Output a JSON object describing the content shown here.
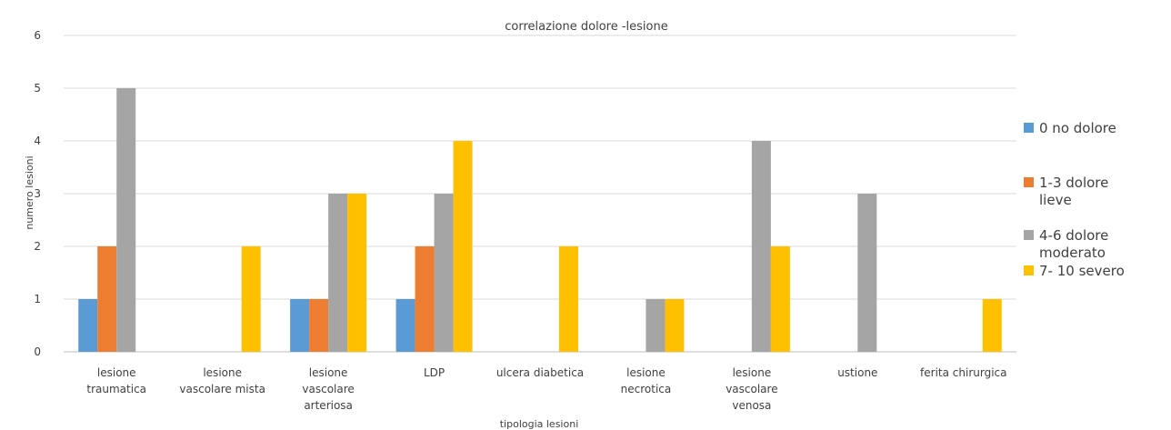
{
  "chart_data": {
    "type": "bar",
    "title": "correlazione dolore -lesione",
    "xlabel": "tipologia lesioni",
    "ylabel": "numero lesioni",
    "ylim": [
      0,
      6
    ],
    "yticks": [
      "0",
      "1",
      "2",
      "3",
      "4",
      "5",
      "6"
    ],
    "grid": true,
    "legend_position": "right",
    "categories": [
      [
        "lesione",
        "traumatica"
      ],
      [
        "lesione",
        "vascolare mista"
      ],
      [
        "lesione",
        "vascolare",
        "arteriosa"
      ],
      [
        "LDP"
      ],
      [
        "ulcera diabetica"
      ],
      [
        "lesione",
        "necrotica"
      ],
      [
        "lesione",
        "vascolare",
        "venosa"
      ],
      [
        "ustione"
      ],
      [
        "ferita chirurgica"
      ]
    ],
    "series": [
      {
        "name": "0 no dolore",
        "name_lines": [
          "0 no dolore"
        ],
        "color": "#5b9bd5",
        "values": [
          1,
          0,
          1,
          1,
          0,
          0,
          0,
          0,
          0
        ]
      },
      {
        "name": "1-3 dolore lieve",
        "name_lines": [
          "1-3 dolore",
          "lieve"
        ],
        "color": "#ed7d31",
        "values": [
          2,
          0,
          1,
          2,
          0,
          0,
          0,
          0,
          0
        ]
      },
      {
        "name": "4-6 dolore moderato",
        "name_lines": [
          "4-6  dolore",
          "moderato"
        ],
        "color": "#a5a5a5",
        "values": [
          5,
          0,
          3,
          3,
          0,
          1,
          4,
          3,
          0
        ]
      },
      {
        "name": "7- 10 severo",
        "name_lines": [
          "7- 10 severo"
        ],
        "color": "#ffc000",
        "values": [
          0,
          2,
          3,
          4,
          2,
          1,
          2,
          0,
          1
        ]
      }
    ]
  }
}
